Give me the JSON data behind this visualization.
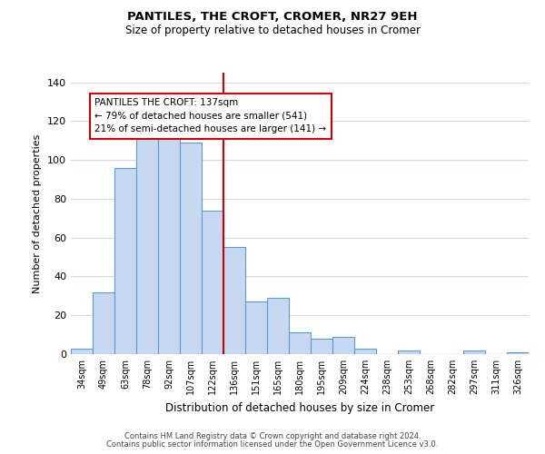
{
  "title": "PANTILES, THE CROFT, CROMER, NR27 9EH",
  "subtitle": "Size of property relative to detached houses in Cromer",
  "xlabel": "Distribution of detached houses by size in Cromer",
  "ylabel": "Number of detached properties",
  "bar_labels": [
    "34sqm",
    "49sqm",
    "63sqm",
    "78sqm",
    "92sqm",
    "107sqm",
    "122sqm",
    "136sqm",
    "151sqm",
    "165sqm",
    "180sqm",
    "195sqm",
    "209sqm",
    "224sqm",
    "238sqm",
    "253sqm",
    "268sqm",
    "282sqm",
    "297sqm",
    "311sqm",
    "326sqm"
  ],
  "bar_values": [
    3,
    32,
    96,
    113,
    113,
    109,
    74,
    55,
    27,
    29,
    11,
    8,
    9,
    3,
    0,
    2,
    0,
    0,
    2,
    0,
    1
  ],
  "bar_color": "#c6d9f1",
  "bar_edge_color": "#5b9bd5",
  "vline_color": "#cc0000",
  "annotation_title": "PANTILES THE CROFT: 137sqm",
  "annotation_line1": "← 79% of detached houses are smaller (541)",
  "annotation_line2": "21% of semi-detached houses are larger (141) →",
  "annotation_box_color": "#ffffff",
  "annotation_box_edge": "#cc0000",
  "ylim": [
    0,
    145
  ],
  "yticks": [
    0,
    20,
    40,
    60,
    80,
    100,
    120,
    140
  ],
  "footer1": "Contains HM Land Registry data © Crown copyright and database right 2024.",
  "footer2": "Contains public sector information licensed under the Open Government Licence v3.0.",
  "background_color": "#ffffff",
  "grid_color": "#d0d8e8"
}
